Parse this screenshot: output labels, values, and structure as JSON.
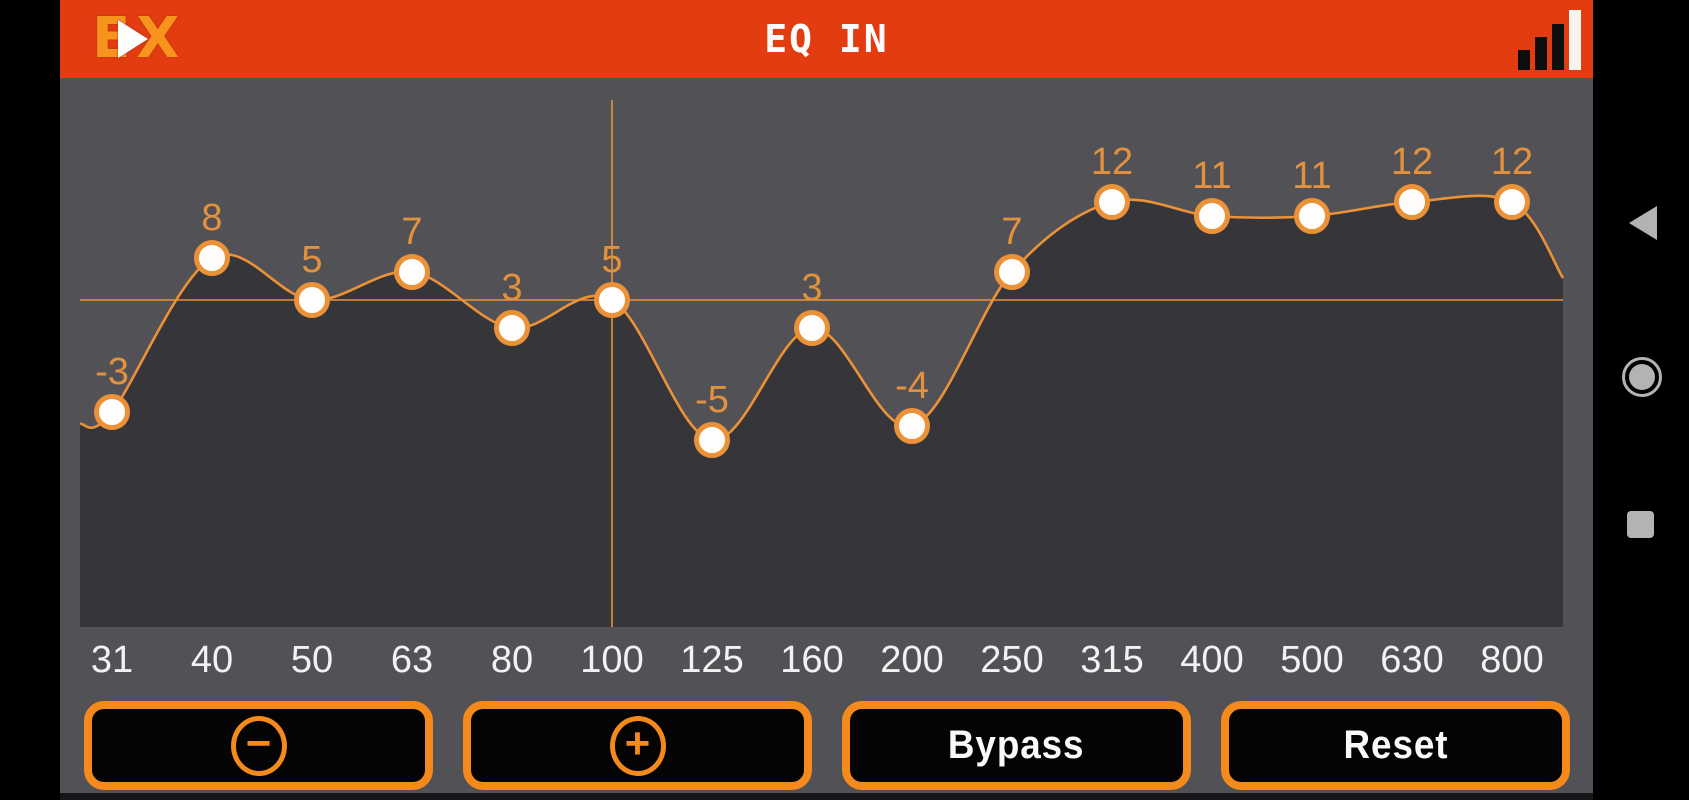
{
  "header": {
    "logo": {
      "e": "E",
      "x": "X"
    },
    "title": "EQ IN"
  },
  "status": {
    "signal_icon": "signal-strength-bars"
  },
  "chart_data": {
    "type": "line",
    "title": "EQ IN",
    "categories": [
      "31",
      "40",
      "50",
      "63",
      "80",
      "100",
      "125",
      "160",
      "200",
      "250",
      "315",
      "400",
      "500",
      "630",
      "800"
    ],
    "values": [
      -3,
      8,
      5,
      7,
      3,
      5,
      -5,
      3,
      -4,
      7,
      12,
      11,
      11,
      12,
      12
    ],
    "selected_band": {
      "frequency": "100",
      "gain": 5,
      "crosshair": true
    },
    "y_range_hint": [
      -16,
      21
    ],
    "grid": false,
    "legend": false,
    "markers": true
  },
  "controls": {
    "buttons": [
      {
        "id": "decrease",
        "glyph": "−"
      },
      {
        "id": "increase",
        "glyph": "+"
      },
      {
        "id": "bypass",
        "label": "Bypass"
      },
      {
        "id": "reset",
        "label": "Reset"
      }
    ]
  },
  "nav_bar": {
    "back": "back-triangle",
    "home": "home-circle",
    "recents": "recents-square"
  },
  "colors": {
    "header_bg": "#E33C10",
    "logo_orange": "#F7941D",
    "accent_orange": "#F4891C",
    "curve_orange": "#EB9238",
    "value_label": "#E2913E",
    "chart_fill": "#36353A",
    "app_bg": "#525156",
    "axis_label": "#F2F2F2",
    "button_bg": "#040404",
    "button_text": "#FAFAFA",
    "nav_icon": "#B3B2B5",
    "marker_fill": "#FFFDFB"
  }
}
